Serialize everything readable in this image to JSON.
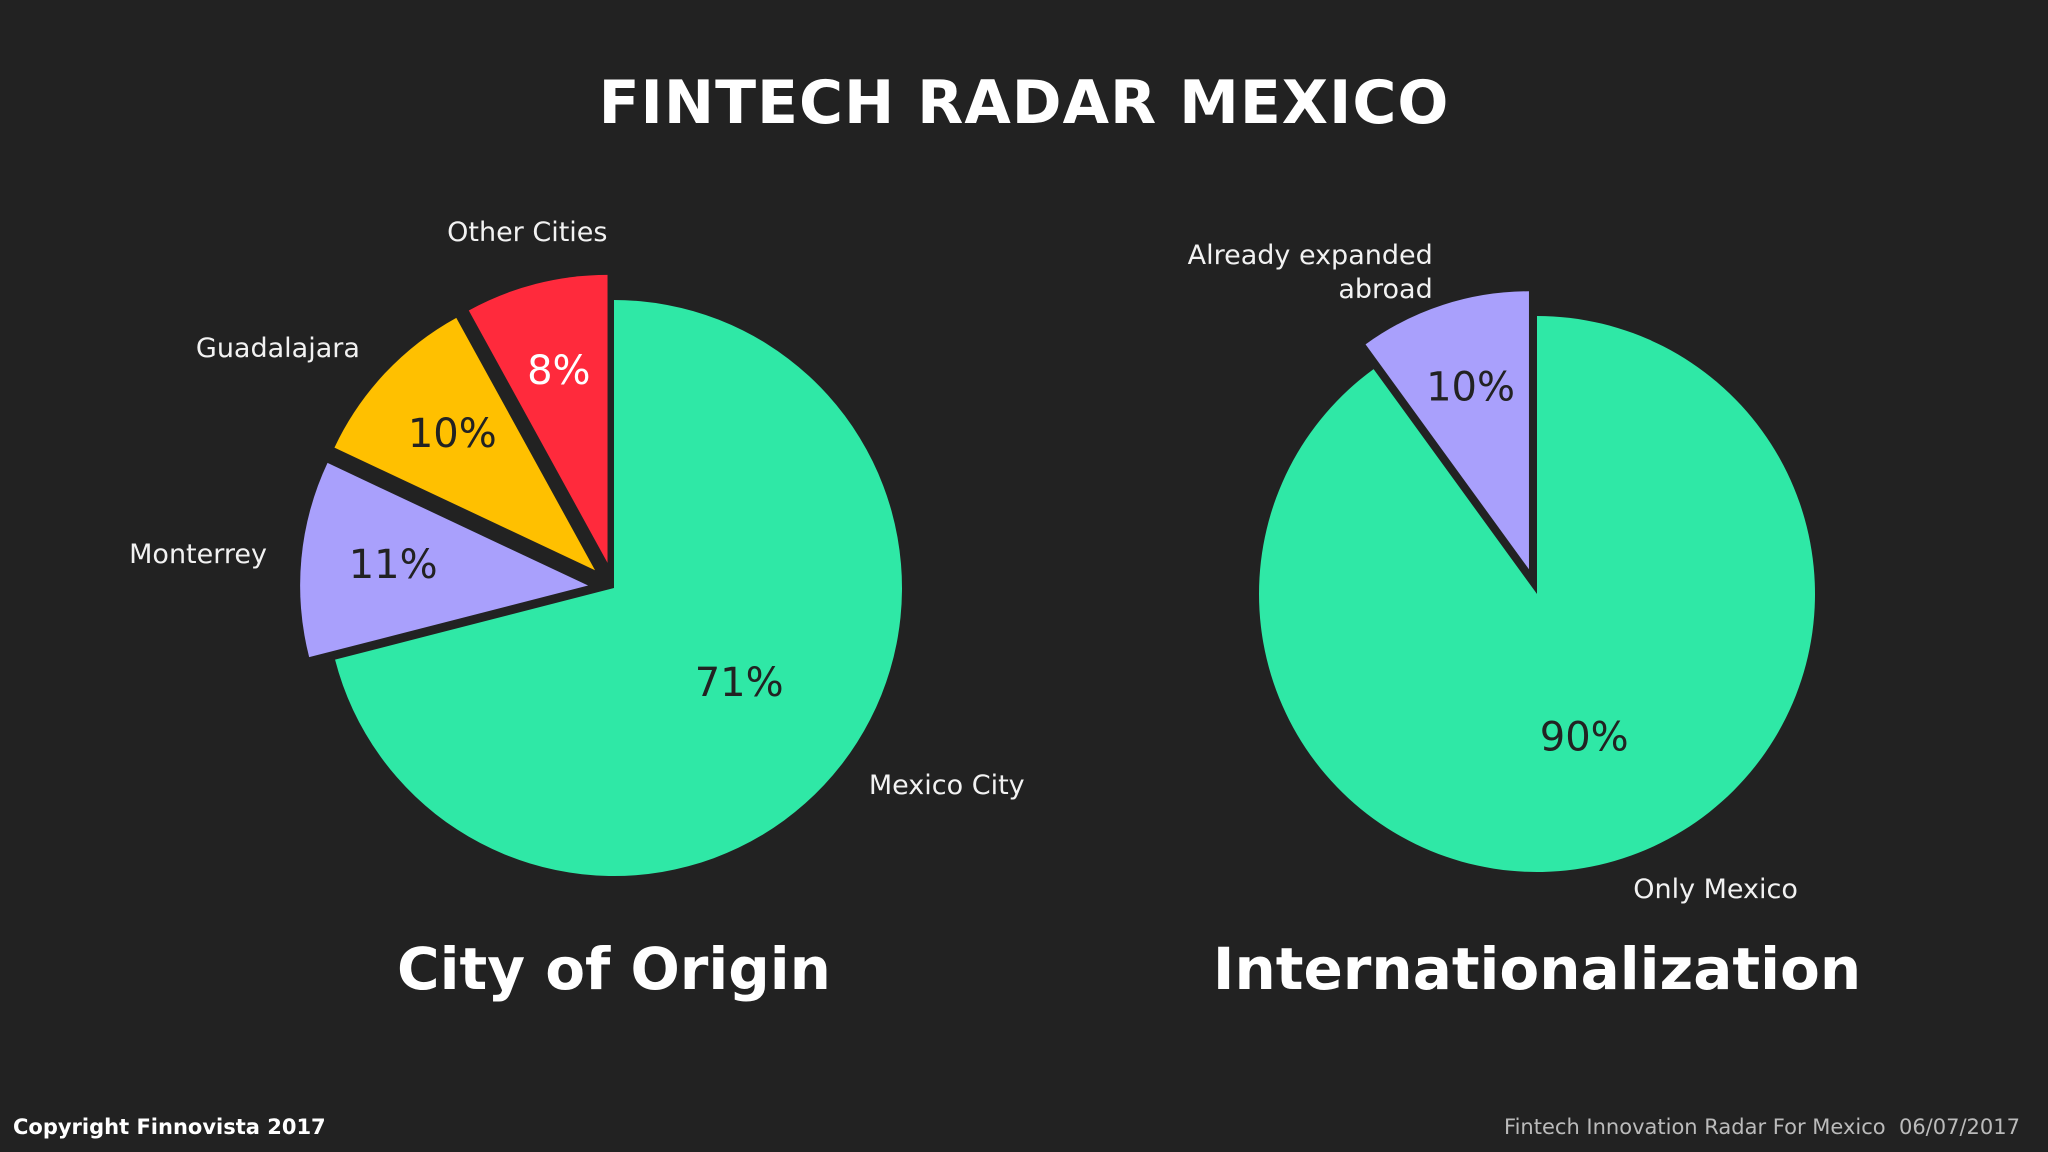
{
  "title": "FINTECH RADAR MEXICO",
  "footer": {
    "left": "Copyright Finnovista 2017",
    "right": "Fintech Innovation Radar For Mexico  06/07/2017"
  },
  "chart_data": [
    {
      "type": "pie",
      "title": "City of Origin",
      "categories": [
        "Mexico City",
        "Monterrey",
        "Guadalajara",
        "Other Cities"
      ],
      "values": [
        71,
        11,
        10,
        8
      ],
      "value_labels": [
        "71%",
        "11%",
        "10%",
        "8%"
      ],
      "colors": [
        "#2fe8a6",
        "#a9a0fc",
        "#ffc000",
        "#ff2a3c"
      ]
    },
    {
      "type": "pie",
      "title": "Internationalization",
      "categories": [
        "Only Mexico",
        "Already expanded abroad"
      ],
      "values": [
        90,
        10
      ],
      "value_labels": [
        "90%",
        "10%"
      ],
      "colors": [
        "#2fe8a6",
        "#a9a0fc"
      ]
    }
  ]
}
